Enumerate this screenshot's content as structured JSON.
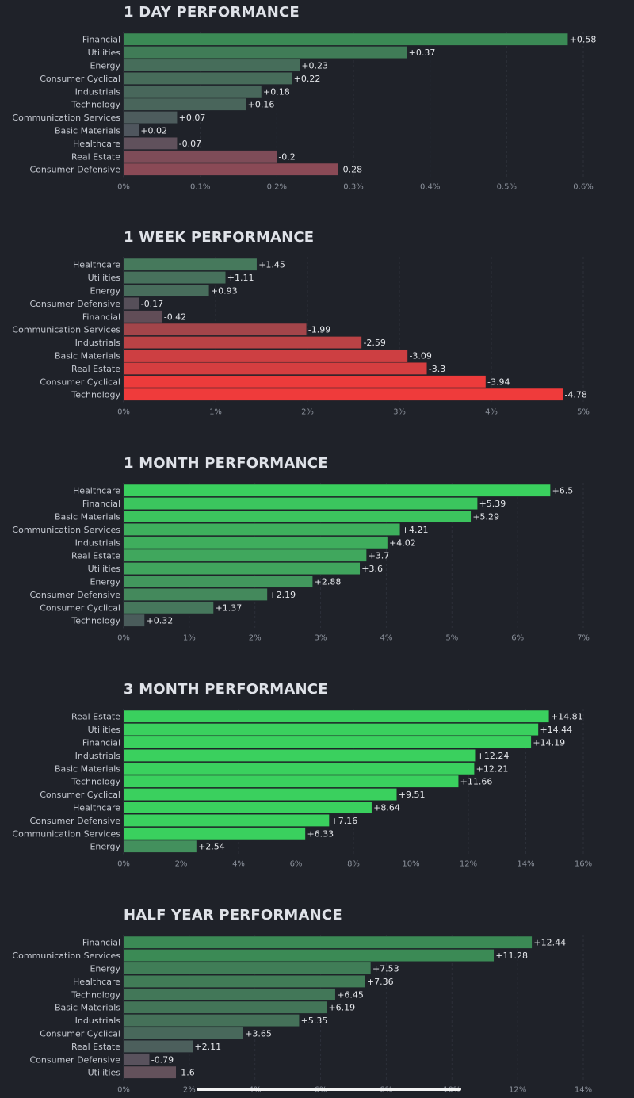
{
  "colors": {
    "background": "#1f2229",
    "strong_green": "#3ad05e",
    "strong_red": "#ef3b3b"
  },
  "chart_data": [
    {
      "type": "bar",
      "orientation": "horizontal",
      "title": "1 DAY PERFORMANCE",
      "categories": [
        "Financial",
        "Utilities",
        "Energy",
        "Consumer Cyclical",
        "Industrials",
        "Technology",
        "Communication Services",
        "Basic Materials",
        "Healthcare",
        "Real Estate",
        "Consumer Defensive"
      ],
      "values": [
        0.58,
        0.37,
        0.23,
        0.22,
        0.18,
        0.16,
        0.07,
        0.02,
        -0.07,
        -0.2,
        -0.28
      ],
      "value_labels": [
        "+0.58",
        "+0.37",
        "+0.23",
        "+0.22",
        "+0.18",
        "+0.16",
        "+0.07",
        "+0.02",
        "-0.07",
        "-0.2",
        "-0.28"
      ],
      "ticks": [
        "0%",
        "0.1%",
        "0.2%",
        "0.3%",
        "0.4%",
        "0.5%",
        "0.6%"
      ],
      "xlim": [
        0,
        0.6
      ],
      "bar_magnitude": "absolute value",
      "grid": true
    },
    {
      "type": "bar",
      "orientation": "horizontal",
      "title": "1 WEEK PERFORMANCE",
      "categories": [
        "Healthcare",
        "Utilities",
        "Energy",
        "Consumer Defensive",
        "Financial",
        "Communication Services",
        "Industrials",
        "Basic Materials",
        "Real Estate",
        "Consumer Cyclical",
        "Technology"
      ],
      "values": [
        1.45,
        1.11,
        0.93,
        -0.17,
        -0.42,
        -1.99,
        -2.59,
        -3.09,
        -3.3,
        -3.94,
        -4.78
      ],
      "value_labels": [
        "+1.45",
        "+1.11",
        "+0.93",
        "-0.17",
        "-0.42",
        "-1.99",
        "-2.59",
        "-3.09",
        "-3.3",
        "-3.94",
        "-4.78"
      ],
      "ticks": [
        "0%",
        "1%",
        "2%",
        "3%",
        "4%",
        "5%"
      ],
      "xlim": [
        0,
        5
      ],
      "bar_magnitude": "absolute value",
      "grid": true
    },
    {
      "type": "bar",
      "orientation": "horizontal",
      "title": "1 MONTH PERFORMANCE",
      "categories": [
        "Healthcare",
        "Financial",
        "Basic Materials",
        "Communication Services",
        "Industrials",
        "Real Estate",
        "Utilities",
        "Energy",
        "Consumer Defensive",
        "Consumer Cyclical",
        "Technology"
      ],
      "values": [
        6.5,
        5.39,
        5.29,
        4.21,
        4.02,
        3.7,
        3.6,
        2.88,
        2.19,
        1.37,
        0.32
      ],
      "value_labels": [
        "+6.5",
        "+5.39",
        "+5.29",
        "+4.21",
        "+4.02",
        "+3.7",
        "+3.6",
        "+2.88",
        "+2.19",
        "+1.37",
        "+0.32"
      ],
      "ticks": [
        "0%",
        "1%",
        "2%",
        "3%",
        "4%",
        "5%",
        "6%",
        "7%"
      ],
      "xlim": [
        0,
        7
      ],
      "bar_magnitude": "absolute value",
      "grid": true
    },
    {
      "type": "bar",
      "orientation": "horizontal",
      "title": "3 MONTH PERFORMANCE",
      "categories": [
        "Real Estate",
        "Utilities",
        "Financial",
        "Industrials",
        "Basic Materials",
        "Technology",
        "Consumer Cyclical",
        "Healthcare",
        "Consumer Defensive",
        "Communication Services",
        "Energy"
      ],
      "values": [
        14.81,
        14.44,
        14.19,
        12.24,
        12.21,
        11.66,
        9.51,
        8.64,
        7.16,
        6.33,
        2.54
      ],
      "value_labels": [
        "+14.81",
        "+14.44",
        "+14.19",
        "+12.24",
        "+12.21",
        "+11.66",
        "+9.51",
        "+8.64",
        "+7.16",
        "+6.33",
        "+2.54"
      ],
      "ticks": [
        "0%",
        "2%",
        "4%",
        "6%",
        "8%",
        "10%",
        "12%",
        "14%",
        "16%"
      ],
      "xlim": [
        0,
        16
      ],
      "bar_magnitude": "absolute value",
      "grid": true
    },
    {
      "type": "bar",
      "orientation": "horizontal",
      "title": "HALF YEAR PERFORMANCE",
      "categories": [
        "Financial",
        "Communication Services",
        "Energy",
        "Healthcare",
        "Technology",
        "Basic Materials",
        "Industrials",
        "Consumer Cyclical",
        "Real Estate",
        "Consumer Defensive",
        "Utilities"
      ],
      "values": [
        12.44,
        11.28,
        7.53,
        7.36,
        6.45,
        6.19,
        5.35,
        3.65,
        2.11,
        -0.79,
        -1.6
      ],
      "value_labels": [
        "+12.44",
        "+11.28",
        "+7.53",
        "+7.36",
        "+6.45",
        "+6.19",
        "+5.35",
        "+3.65",
        "+2.11",
        "-0.79",
        "-1.6"
      ],
      "ticks": [
        "0%",
        "2%",
        "4%",
        "6%",
        "8%",
        "10%",
        "12%",
        "14%"
      ],
      "xlim": [
        0,
        14
      ],
      "bar_magnitude": "absolute value",
      "grid": true
    }
  ]
}
